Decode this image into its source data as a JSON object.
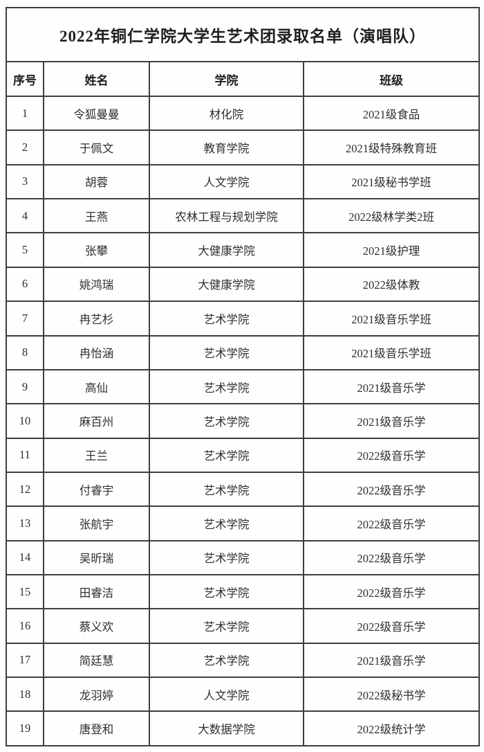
{
  "title": "2022年铜仁学院大学生艺术团录取名单（演唱队）",
  "table": {
    "headers": [
      "序号",
      "姓名",
      "学院",
      "班级"
    ],
    "rows": [
      [
        "1",
        "令狐曼曼",
        "材化院",
        "2021级食品"
      ],
      [
        "2",
        "于佩文",
        "教育学院",
        "2021级特殊教育班"
      ],
      [
        "3",
        "胡蓉",
        "人文学院",
        "2021级秘书学班"
      ],
      [
        "4",
        "王燕",
        "农林工程与规划学院",
        "2022级林学类2班"
      ],
      [
        "5",
        "张攀",
        "大健康学院",
        "2021级护理"
      ],
      [
        "6",
        "姚鸿瑞",
        "大健康学院",
        "2022级体教"
      ],
      [
        "7",
        "冉艺杉",
        "艺术学院",
        "2021级音乐学班"
      ],
      [
        "8",
        "冉怡涵",
        "艺术学院",
        "2021级音乐学班"
      ],
      [
        "9",
        "高仙",
        "艺术学院",
        "2021级音乐学"
      ],
      [
        "10",
        "麻百州",
        "艺术学院",
        "2021级音乐学"
      ],
      [
        "11",
        "王兰",
        "艺术学院",
        "2022级音乐学"
      ],
      [
        "12",
        "付睿宇",
        "艺术学院",
        "2022级音乐学"
      ],
      [
        "13",
        "张航宇",
        "艺术学院",
        "2022级音乐学"
      ],
      [
        "14",
        "吴昕瑞",
        "艺术学院",
        "2022级音乐学"
      ],
      [
        "15",
        "田睿洁",
        "艺术学院",
        "2022级音乐学"
      ],
      [
        "16",
        "蔡义欢",
        "艺术学院",
        "2022级音乐学"
      ],
      [
        "17",
        "简廷慧",
        "艺术学院",
        "2021级音乐学"
      ],
      [
        "18",
        "龙羽婷",
        "人文学院",
        "2022级秘书学"
      ],
      [
        "19",
        "唐登和",
        "大数据学院",
        "2022级统计学"
      ]
    ]
  },
  "colors": {
    "border": "#3d3d3d",
    "text": "#2f2f2f",
    "background": "#fefefe"
  }
}
